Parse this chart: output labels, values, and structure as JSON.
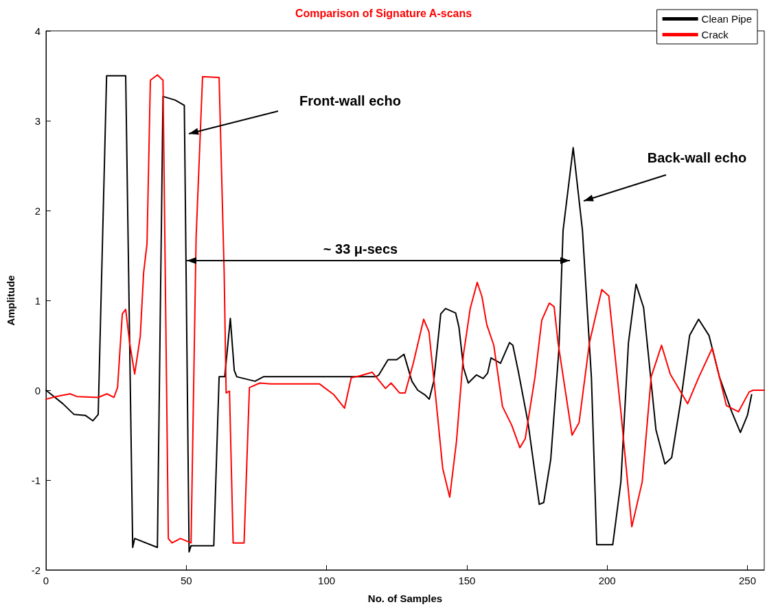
{
  "chart_data": {
    "type": "line",
    "title": "Comparison of Signature A-scans",
    "xlabel": "No. of Samples",
    "ylabel": "Amplitude",
    "xlim": [
      0,
      256
    ],
    "xticks": [
      0,
      50,
      100,
      150,
      200,
      250
    ],
    "ylim": [
      -2,
      4
    ],
    "yticks": [
      -2,
      -1,
      0,
      1,
      2,
      3,
      4
    ],
    "grid": false,
    "legend": "top right",
    "line_style": "solid",
    "marker": "none",
    "series": [
      {
        "name": "Clean Pipe",
        "color": "#000000",
        "x": [
          0,
          2,
          6,
          10,
          14,
          16.7,
          18.6,
          21.6,
          28.4,
          30.9,
          31.6,
          39.7,
          41.7,
          46,
          49.3,
          51,
          51.7,
          59.8,
          61.7,
          63.7,
          65.7,
          67.1,
          68,
          74.5,
          77.5,
          117.6,
          118.6,
          121.9,
          125,
          127.6,
          130.4,
          132.5,
          135,
          136.6,
          138.2,
          140.7,
          142.4,
          146,
          147.2,
          148.8,
          150.5,
          153.4,
          155.8,
          157.4,
          158.6,
          162,
          165.2,
          166.4,
          168.4,
          171.8,
          175.8,
          177.4,
          179.9,
          182.8,
          184.3,
          187.9,
          191.2,
          194.4,
          196.3,
          198,
          202,
          204.9,
          207.6,
          210.3,
          213,
          217.4,
          220.6,
          223,
          226.2,
          229.4,
          232.6,
          236.3,
          240,
          244.4,
          247.5,
          250,
          251.5
        ],
        "values": [
          0,
          -0.05,
          -0.15,
          -0.27,
          -0.28,
          -0.34,
          -0.27,
          3.5,
          3.5,
          -1.75,
          -1.65,
          -1.75,
          3.27,
          3.23,
          3.17,
          -1.8,
          -1.73,
          -1.73,
          0.15,
          0.15,
          0.8,
          0.22,
          0.15,
          0.1,
          0.15,
          0.15,
          0.17,
          0.34,
          0.34,
          0.4,
          0.1,
          0,
          -0.05,
          -0.1,
          0.1,
          0.85,
          0.91,
          0.86,
          0.7,
          0.25,
          0.08,
          0.17,
          0.13,
          0.19,
          0.36,
          0.3,
          0.53,
          0.5,
          0.2,
          -0.36,
          -1.27,
          -1.25,
          -0.77,
          0.45,
          1.78,
          2.7,
          1.78,
          0.14,
          -1.72,
          -1.72,
          -1.72,
          -1.02,
          0.53,
          1.18,
          0.92,
          -0.44,
          -0.82,
          -0.75,
          -0.13,
          0.61,
          0.79,
          0.61,
          0.15,
          -0.24,
          -0.47,
          -0.28,
          -0.05
        ]
      },
      {
        "name": "Crack",
        "color": "#ff0000",
        "x": [
          0,
          3.5,
          8.6,
          11,
          18.6,
          21.7,
          24.2,
          25.5,
          27.2,
          28.4,
          29.8,
          31.6,
          33.6,
          34.8,
          36,
          37.2,
          39.7,
          41.7,
          43.6,
          44.9,
          47.9,
          51.7,
          53.5,
          55.8,
          61.7,
          63.5,
          64.2,
          65.4,
          66.7,
          70.6,
          72.5,
          76.2,
          80,
          97.5,
          102.6,
          106.4,
          108.8,
          111.9,
          116.3,
          121,
          123,
          126,
          128,
          130.9,
          134.6,
          136.5,
          139,
          141.4,
          143.9,
          146.3,
          148.8,
          151.2,
          153.7,
          155.4,
          157.1,
          159.6,
          162.7,
          166,
          168.9,
          170.8,
          174.3,
          176.7,
          179.4,
          181.1,
          182.5,
          187.5,
          190,
          193.7,
          198.1,
          200.6,
          204.9,
          208.8,
          212.5,
          215.7,
          219.4,
          222.5,
          228.7,
          232.6,
          237.5,
          242.5,
          246.8,
          250.6,
          252,
          256
        ],
        "values": [
          -0.1,
          -0.07,
          -0.04,
          -0.07,
          -0.08,
          -0.04,
          -0.08,
          0.03,
          0.85,
          0.9,
          0.53,
          0.18,
          0.6,
          1.31,
          1.63,
          3.45,
          3.51,
          3.45,
          -1.65,
          -1.7,
          -1.65,
          -1.7,
          1.7,
          3.49,
          3.48,
          1.31,
          -0.03,
          -0.01,
          -1.7,
          -1.7,
          0.03,
          0.08,
          0.07,
          0.07,
          -0.05,
          -0.2,
          0.14,
          0.16,
          0.2,
          0.02,
          0.08,
          -0.03,
          -0.03,
          0.3,
          0.79,
          0.65,
          -0.11,
          -0.87,
          -1.19,
          -0.57,
          0.4,
          0.91,
          1.2,
          1.04,
          0.73,
          0.5,
          -0.18,
          -0.39,
          -0.64,
          -0.54,
          0.15,
          0.78,
          0.97,
          0.93,
          0.53,
          -0.5,
          -0.36,
          0.53,
          1.12,
          1.05,
          -0.24,
          -1.52,
          -1.02,
          0.15,
          0.5,
          0.18,
          -0.15,
          0.14,
          0.47,
          -0.17,
          -0.24,
          -0.02,
          0,
          0
        ]
      }
    ],
    "annotations": [
      "Front-wall echo",
      "Back-wall echo",
      "~ 33 μ-secs"
    ]
  }
}
